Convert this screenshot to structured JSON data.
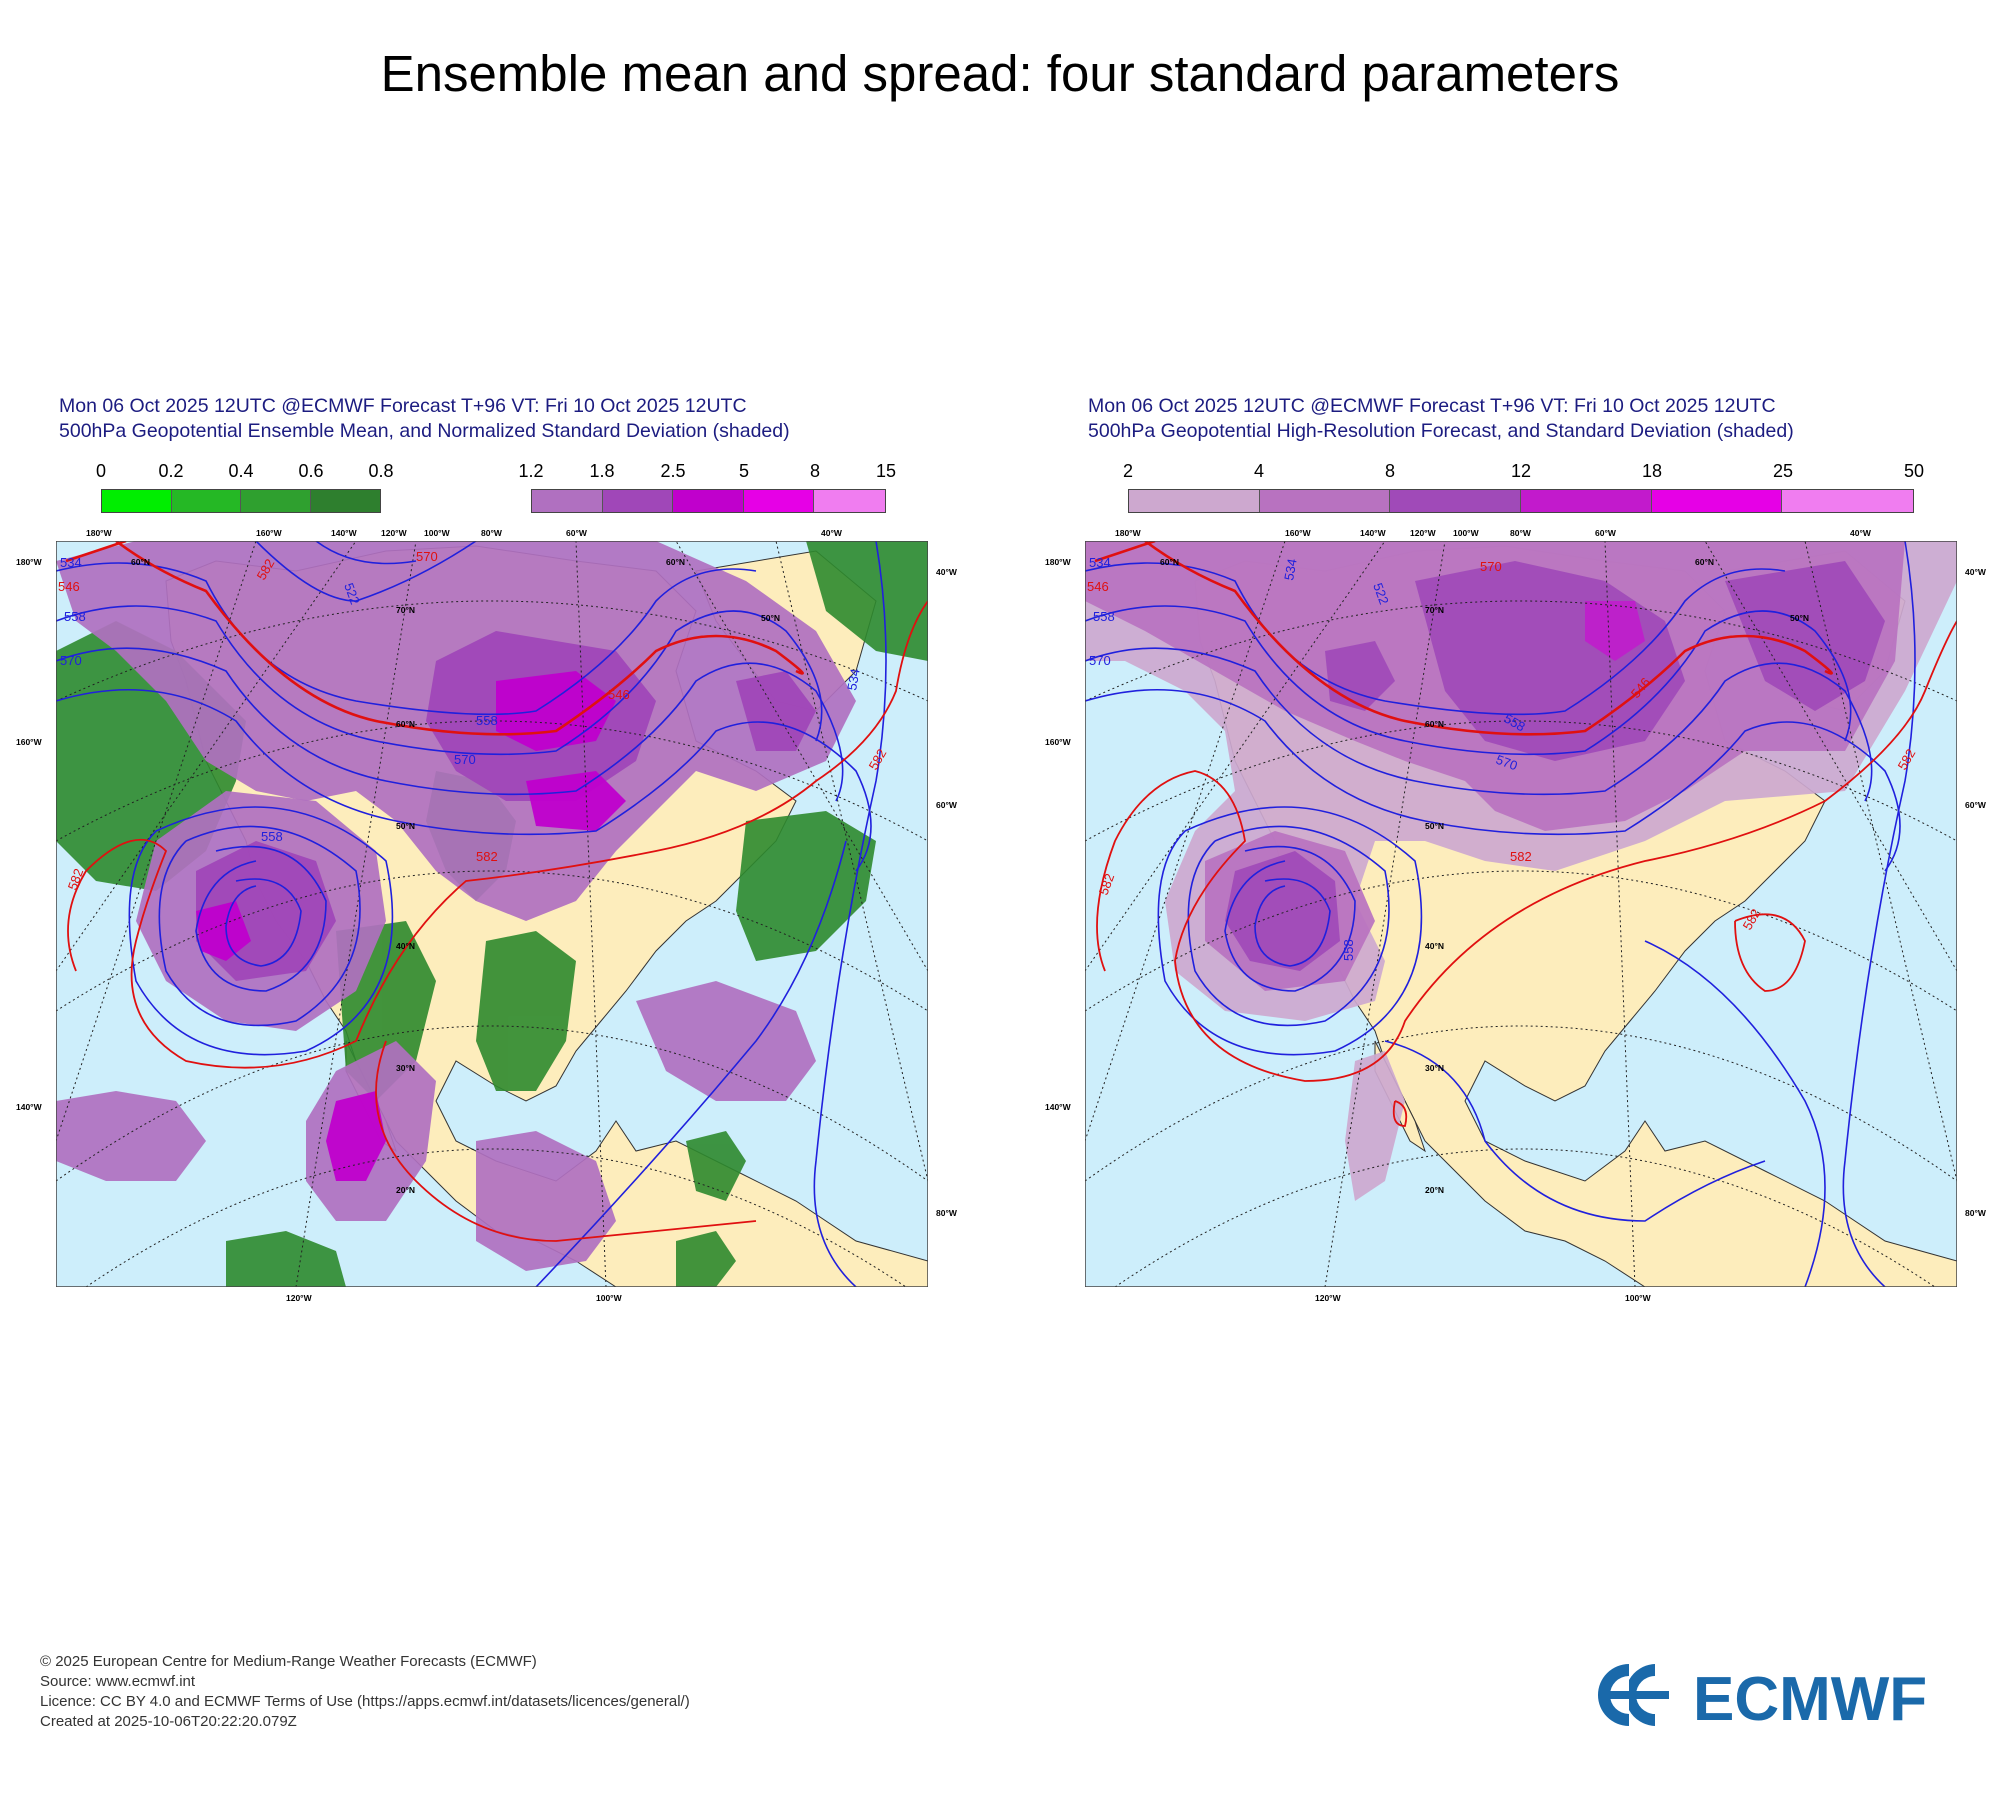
{
  "page_title": "Ensemble mean and spread: four standard parameters",
  "panels": [
    {
      "header_line1": "Mon 06 Oct 2025 12UTC @ECMWF Forecast T+96 VT: Fri 10 Oct 2025 12UTC",
      "header_line2": "500hPa Geopotential Ensemble Mean, and Normalized Standard Deviation (shaded)",
      "colorbar_a": {
        "tick_labels": [
          "0",
          "0.2",
          "0.4",
          "0.6",
          "0.8"
        ],
        "colors": [
          "#00ee00",
          "#25b825",
          "#2fa02f",
          "#2e7f2e"
        ]
      },
      "colorbar_b": {
        "tick_labels": [
          "1.2",
          "1.8",
          "2.5",
          "5",
          "8",
          "15"
        ],
        "colors": [
          "#b070c0",
          "#a047b8",
          "#c000cc",
          "#e600e6",
          "#f07df0"
        ]
      },
      "contour_labels": [
        "534",
        "546",
        "558",
        "570",
        "522",
        "546",
        "558",
        "570",
        "582",
        "558",
        "582",
        "582",
        "582",
        "570",
        "534"
      ],
      "lat_labels": [
        "60°N",
        "70°N",
        "60°N",
        "50°N",
        "40°N",
        "30°N",
        "20°N",
        "50°N",
        "60°N"
      ],
      "lon_labels": [
        "180°W",
        "160°W",
        "140°W",
        "120°W",
        "100°W",
        "80°W",
        "60°W",
        "40°W",
        "180°W",
        "160°W",
        "140°W",
        "40°W",
        "60°W",
        "80°W",
        "120°W",
        "100°W"
      ]
    },
    {
      "header_line1": "Mon 06 Oct 2025 12UTC @ECMWF Forecast T+96 VT: Fri 10 Oct 2025 12UTC",
      "header_line2": "500hPa Geopotential High-Resolution Forecast, and Standard Deviation (shaded)",
      "colorbar_a": {
        "tick_labels": [
          "2",
          "4",
          "8",
          "12",
          "18",
          "25",
          "50"
        ],
        "colors": [
          "#cda8cf",
          "#b872c0",
          "#a04ab8",
          "#c21acc",
          "#e600e6",
          "#f07df0"
        ]
      },
      "contour_labels": [
        "534",
        "546",
        "558",
        "570",
        "522",
        "546",
        "558",
        "570",
        "582",
        "558",
        "582",
        "582",
        "582",
        "534",
        "570"
      ],
      "lat_labels": [
        "60°N",
        "70°N",
        "60°N",
        "50°N",
        "40°N",
        "30°N",
        "20°N",
        "50°N",
        "60°N"
      ],
      "lon_labels": [
        "180°W",
        "160°W",
        "140°W",
        "120°W",
        "100°W",
        "80°W",
        "60°W",
        "40°W",
        "180°W",
        "160°W",
        "140°W",
        "40°W",
        "60°W",
        "80°W",
        "120°W",
        "100°W"
      ]
    }
  ],
  "footer": {
    "line1": "© 2025 European Centre for Medium-Range Weather Forecasts (ECMWF)",
    "line2": "Source: www.ecmwf.int",
    "line3": "Licence: CC BY 4.0 and ECMWF Terms of Use (https://apps.ecmwf.int/datasets/licences/general/)",
    "line4": "Created at 2025-10-06T20:22:20.079Z"
  },
  "logo_text": "ECMWF",
  "colors": {
    "ocean": "#cdeefb",
    "land": "#fdedbc",
    "contour_blue": "#2020dd",
    "contour_red": "#e01010",
    "title_text": "#1c1c80",
    "logo_blue": "#1a69aa"
  }
}
